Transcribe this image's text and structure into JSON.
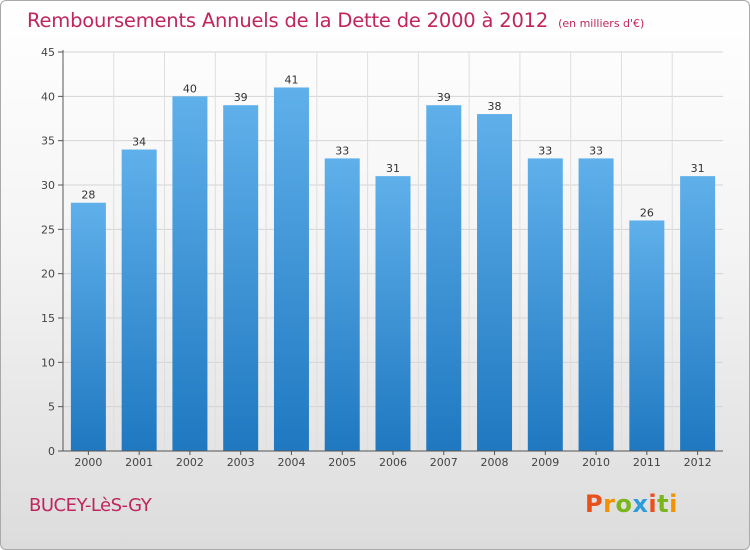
{
  "title": "Remboursements Annuels de la Dette de 2000 à 2012",
  "unit_note": "(en milliers d'€)",
  "commune": "BUCEY-LèS-GY",
  "logo": {
    "text": "Proxiti",
    "letter_colors": [
      "#e94e1b",
      "#f39200",
      "#7ab51d",
      "#2d9cdb",
      "#e94e1b",
      "#7ab51d",
      "#f39200"
    ]
  },
  "colors": {
    "title": "#c0255d",
    "bar_light": "#5fb0ea",
    "bar_dark": "#1f78c0",
    "axis": "#555555"
  },
  "chart_data": {
    "type": "bar",
    "categories": [
      "2000",
      "2001",
      "2002",
      "2003",
      "2004",
      "2005",
      "2006",
      "2007",
      "2008",
      "2009",
      "2010",
      "2011",
      "2012"
    ],
    "values": [
      28,
      34,
      40,
      39,
      41,
      33,
      31,
      39,
      38,
      33,
      33,
      26,
      31
    ],
    "ylim": [
      0,
      45
    ],
    "yticks": [
      0,
      5,
      10,
      15,
      20,
      25,
      30,
      35,
      40,
      45
    ],
    "xlabel": "",
    "ylabel": "",
    "grid": true
  }
}
